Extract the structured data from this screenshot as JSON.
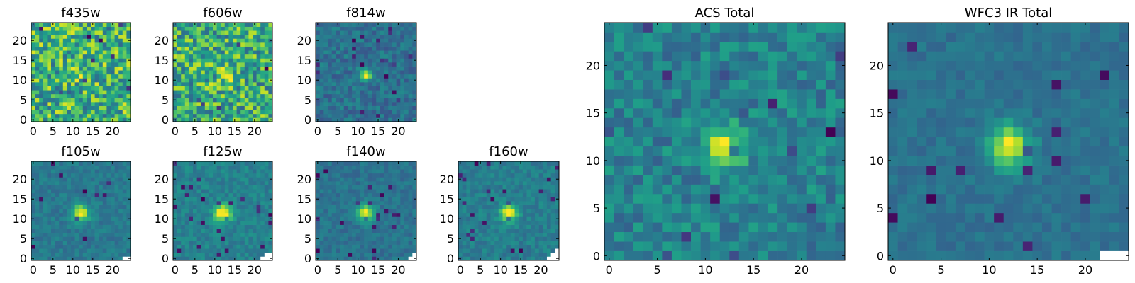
{
  "chart_data": [
    {
      "type": "heatmap",
      "title": "f435w",
      "grid": false,
      "xlim": [
        -0.5,
        24.5
      ],
      "ylim": [
        -0.5,
        24.5
      ],
      "xticks": [
        0,
        5,
        10,
        15,
        20
      ],
      "yticks": [
        0,
        5,
        10,
        15,
        20
      ],
      "rows": 25,
      "cols": 25,
      "colormap": "viridis",
      "masked_pixels": [],
      "source": {
        "kind": "noise",
        "amplitude": 0.1,
        "sigma": 3.0,
        "noise": 1.0,
        "seed": 11
      }
    },
    {
      "type": "heatmap",
      "title": "f606w",
      "grid": false,
      "xlim": [
        -0.5,
        24.5
      ],
      "ylim": [
        -0.5,
        24.5
      ],
      "xticks": [
        0,
        5,
        10,
        15,
        20
      ],
      "yticks": [
        0,
        5,
        10,
        15,
        20
      ],
      "rows": 25,
      "cols": 25,
      "colormap": "viridis",
      "masked_pixels": [],
      "source": {
        "kind": "noise",
        "amplitude": 0.25,
        "sigma": 2.0,
        "noise": 0.9,
        "seed": 23
      }
    },
    {
      "type": "heatmap",
      "title": "f814w",
      "grid": false,
      "xlim": [
        -0.5,
        24.5
      ],
      "ylim": [
        -0.5,
        24.5
      ],
      "xticks": [
        0,
        5,
        10,
        15,
        20
      ],
      "yticks": [
        0,
        5,
        10,
        15,
        20
      ],
      "rows": 25,
      "cols": 25,
      "colormap": "viridis",
      "masked_pixels": [],
      "source": {
        "kind": "blob",
        "amplitude": 1.2,
        "sigma": 1.0,
        "noise": 0.45,
        "seed": 37
      }
    },
    {
      "type": "heatmap",
      "title": "f105w",
      "grid": false,
      "xlim": [
        -0.5,
        24.5
      ],
      "ylim": [
        -0.5,
        24.5
      ],
      "xticks": [
        0,
        5,
        10,
        15,
        20
      ],
      "yticks": [
        0,
        5,
        10,
        15,
        20
      ],
      "rows": 25,
      "cols": 25,
      "colormap": "viridis",
      "masked_pixels": [
        [
          0,
          23
        ],
        [
          0,
          24
        ]
      ],
      "source": {
        "kind": "blob",
        "amplitude": 1.0,
        "sigma": 1.4,
        "noise": 0.25,
        "seed": 41
      }
    },
    {
      "type": "heatmap",
      "title": "f125w",
      "grid": false,
      "xlim": [
        -0.5,
        24.5
      ],
      "ylim": [
        -0.5,
        24.5
      ],
      "xticks": [
        0,
        5,
        10,
        15,
        20
      ],
      "yticks": [
        0,
        5,
        10,
        15,
        20
      ],
      "rows": 25,
      "cols": 25,
      "colormap": "viridis",
      "masked_pixels": [
        [
          0,
          22
        ],
        [
          0,
          23
        ],
        [
          0,
          24
        ],
        [
          1,
          23
        ],
        [
          1,
          24
        ]
      ],
      "source": {
        "kind": "blob",
        "amplitude": 1.0,
        "sigma": 1.5,
        "noise": 0.25,
        "seed": 53
      }
    },
    {
      "type": "heatmap",
      "title": "f140w",
      "grid": false,
      "xlim": [
        -0.5,
        24.5
      ],
      "ylim": [
        -0.5,
        24.5
      ],
      "xticks": [
        0,
        5,
        10,
        15,
        20
      ],
      "yticks": [
        0,
        5,
        10,
        15,
        20
      ],
      "rows": 25,
      "cols": 25,
      "colormap": "viridis",
      "masked_pixels": [
        [
          0,
          23
        ],
        [
          0,
          24
        ],
        [
          1,
          24
        ]
      ],
      "source": {
        "kind": "blob",
        "amplitude": 1.0,
        "sigma": 1.5,
        "noise": 0.25,
        "seed": 67
      }
    },
    {
      "type": "heatmap",
      "title": "f160w",
      "grid": false,
      "xlim": [
        -0.5,
        24.5
      ],
      "ylim": [
        -0.5,
        24.5
      ],
      "xticks": [
        0,
        5,
        10,
        15,
        20
      ],
      "yticks": [
        0,
        5,
        10,
        15,
        20
      ],
      "rows": 25,
      "cols": 25,
      "colormap": "viridis",
      "masked_pixels": [
        [
          0,
          22
        ],
        [
          0,
          23
        ],
        [
          0,
          24
        ],
        [
          1,
          23
        ],
        [
          1,
          24
        ],
        [
          2,
          24
        ]
      ],
      "source": {
        "kind": "blob",
        "amplitude": 1.0,
        "sigma": 1.4,
        "noise": 0.25,
        "seed": 79
      }
    },
    {
      "type": "heatmap",
      "title": "ACS Total",
      "grid": false,
      "xlim": [
        -0.5,
        24.5
      ],
      "ylim": [
        -0.5,
        24.5
      ],
      "xticks": [
        0,
        5,
        10,
        15,
        20
      ],
      "yticks": [
        0,
        5,
        10,
        15,
        20
      ],
      "rows": 25,
      "cols": 25,
      "colormap": "viridis",
      "masked_pixels": [],
      "source": {
        "kind": "blob",
        "amplitude": 0.85,
        "sigma": 1.6,
        "noise": 0.5,
        "seed": 97
      }
    },
    {
      "type": "heatmap",
      "title": "WFC3 IR Total",
      "grid": false,
      "xlim": [
        -0.5,
        24.5
      ],
      "ylim": [
        -0.5,
        24.5
      ],
      "xticks": [
        0,
        5,
        10,
        15,
        20
      ],
      "yticks": [
        0,
        5,
        10,
        15,
        20
      ],
      "rows": 25,
      "cols": 25,
      "colormap": "viridis",
      "masked_pixels": [
        [
          0,
          23
        ],
        [
          0,
          24
        ],
        [
          0,
          22
        ]
      ],
      "source": {
        "kind": "blob",
        "amplitude": 1.0,
        "sigma": 1.5,
        "noise": 0.2,
        "seed": 113
      }
    }
  ]
}
